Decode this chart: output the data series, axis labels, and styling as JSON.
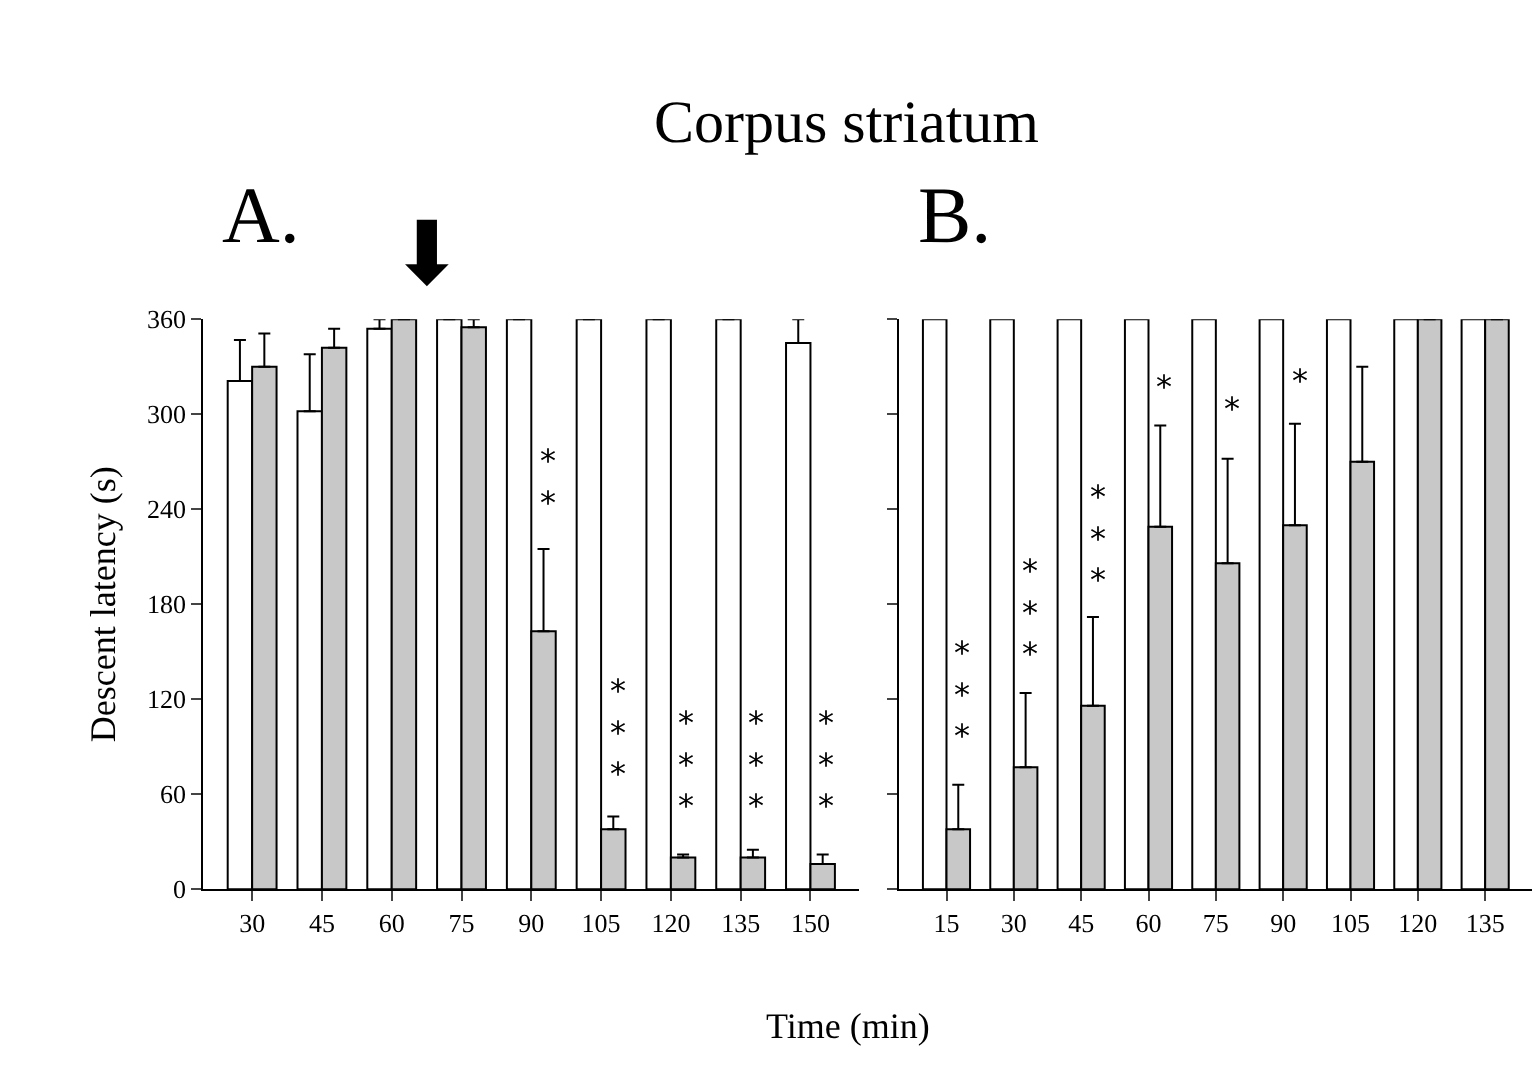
{
  "chart_data": [
    {
      "type": "bar",
      "title": "Corpus striatum",
      "ylabel": "Descent latency (s)",
      "categories": [
        "30",
        "45",
        "60",
        "75",
        "90",
        "105",
        "120",
        "135",
        "150"
      ],
      "series": [
        {
          "color": "#ffffff",
          "values": [
            321,
            302,
            354,
            360,
            360,
            360,
            360,
            360,
            345
          ],
          "errors": [
            26,
            36,
            6,
            null,
            null,
            null,
            null,
            null,
            15
          ]
        },
        {
          "color": "#c8c8c8",
          "values": [
            330,
            342,
            360,
            355,
            163,
            38,
            20,
            20,
            16
          ],
          "errors": [
            21,
            12,
            null,
            5,
            52,
            8,
            2,
            5,
            6
          ]
        }
      ],
      "ylim": [
        0,
        360
      ],
      "yticks": [
        0,
        60,
        120,
        180,
        240,
        300,
        360
      ],
      "annotations": [
        "A.",
        "⬇",
        {
          "text": "**",
          "x": "90",
          "y": 230
        },
        {
          "text": "***",
          "x": "105",
          "y": 58
        },
        {
          "text": "***",
          "x": "120",
          "y": 37
        },
        {
          "text": "***",
          "x": "135",
          "y": 37
        },
        {
          "text": "***",
          "x": "150",
          "y": 37
        }
      ]
    },
    {
      "type": "bar",
      "xlabel": "Time (min)",
      "categories": [
        "15",
        "30",
        "45",
        "60",
        "75",
        "90",
        "105",
        "120",
        "135"
      ],
      "series": [
        {
          "color": "#ffffff",
          "values": [
            360,
            360,
            360,
            360,
            360,
            360,
            360,
            360,
            360
          ]
        },
        {
          "color": "#c8c8c8",
          "values": [
            38,
            77,
            116,
            229,
            206,
            230,
            270,
            360,
            360
          ],
          "errors": [
            28,
            47,
            56,
            64,
            66,
            64,
            60,
            null,
            null
          ]
        }
      ],
      "ylim": [
        0,
        360
      ],
      "yticks": [
        0,
        60,
        120,
        180,
        240,
        300,
        360
      ],
      "tick_labels": "x",
      "annotations": [
        "B.",
        {
          "text": "***",
          "x": "15",
          "y": 82
        },
        {
          "text": "***",
          "x": "30",
          "y": 133
        },
        {
          "text": "***",
          "x": "45",
          "y": 180
        },
        {
          "text": "*",
          "x": "60",
          "y": 303
        },
        {
          "text": "*",
          "x": "75",
          "y": 289
        },
        {
          "text": "*",
          "x": "90",
          "y": 307
        }
      ]
    }
  ]
}
